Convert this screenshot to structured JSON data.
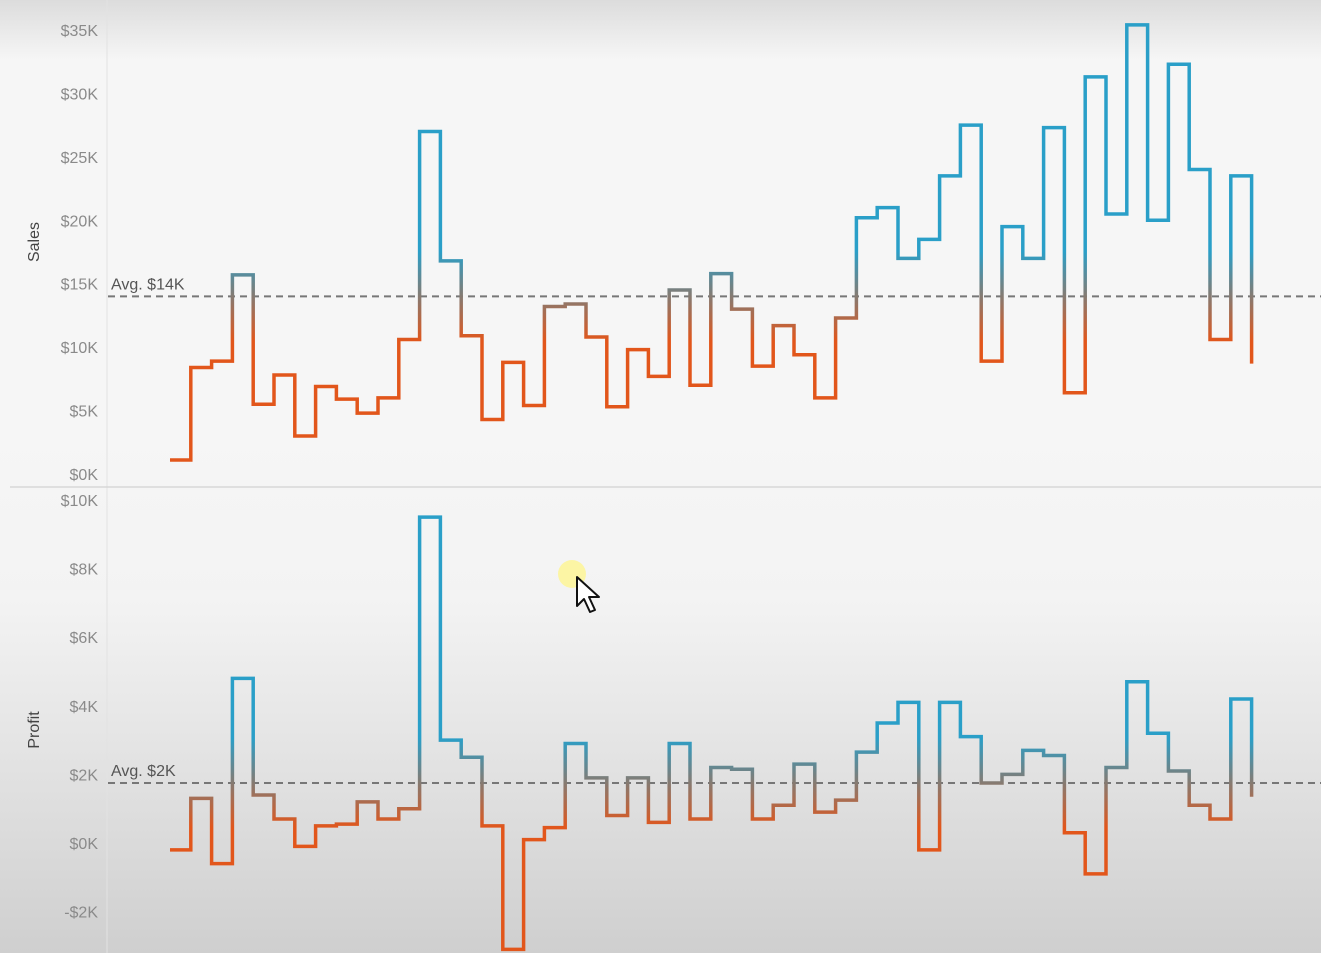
{
  "chart_data": [
    {
      "type": "line",
      "step": true,
      "title": "",
      "ylabel": "Sales",
      "ylim": [
        0,
        35000
      ],
      "yticks": [
        0,
        5000,
        10000,
        15000,
        20000,
        25000,
        30000,
        35000
      ],
      "ytick_labels": [
        "$0K",
        "$5K",
        "$10K",
        "$15K",
        "$20K",
        "$25K",
        "$30K",
        "$35K"
      ],
      "reference_line": {
        "value": 14000,
        "label": "Avg. $14K",
        "style": "dashed"
      },
      "color_above_avg": "#2a9fc8",
      "color_below_avg": "#e2561b",
      "values": [
        1100,
        8400,
        8900,
        15700,
        5500,
        7800,
        3000,
        6900,
        5900,
        4800,
        6000,
        10600,
        27000,
        16800,
        10900,
        4300,
        8800,
        5400,
        13200,
        13400,
        10800,
        5300,
        9800,
        7700,
        14500,
        7000,
        15800,
        13000,
        8500,
        11700,
        9400,
        6000,
        12300,
        20200,
        21000,
        17000,
        18500,
        23500,
        27500,
        8900,
        19500,
        17000,
        27300,
        6400,
        31300,
        20500,
        35400,
        20000,
        32300,
        24000,
        10600,
        23500,
        8700
      ]
    },
    {
      "type": "line",
      "step": true,
      "title": "",
      "ylabel": "Profit",
      "ylim": [
        -3000,
        10000
      ],
      "yticks": [
        -2000,
        0,
        2000,
        4000,
        6000,
        8000,
        10000
      ],
      "ytick_labels": [
        "-$2K",
        "$0K",
        "$2K",
        "$4K",
        "$6K",
        "$8K",
        "$10K"
      ],
      "reference_line": {
        "value": 1750,
        "label": "Avg. $2K",
        "style": "dashed"
      },
      "color_above_avg": "#2a9fc8",
      "color_below_avg": "#e2561b",
      "values": [
        -200,
        1300,
        -600,
        4800,
        1400,
        700,
        -100,
        500,
        550,
        1200,
        700,
        1000,
        9500,
        3000,
        2500,
        500,
        -3100,
        100,
        450,
        2900,
        1900,
        800,
        1900,
        600,
        2900,
        700,
        2200,
        2150,
        700,
        1100,
        2300,
        900,
        1250,
        2650,
        3500,
        4100,
        -200,
        4100,
        3100,
        1750,
        2000,
        2700,
        2550,
        300,
        -900,
        2200,
        4700,
        3200,
        2100,
        1100,
        700,
        4200,
        1350
      ]
    }
  ]
}
